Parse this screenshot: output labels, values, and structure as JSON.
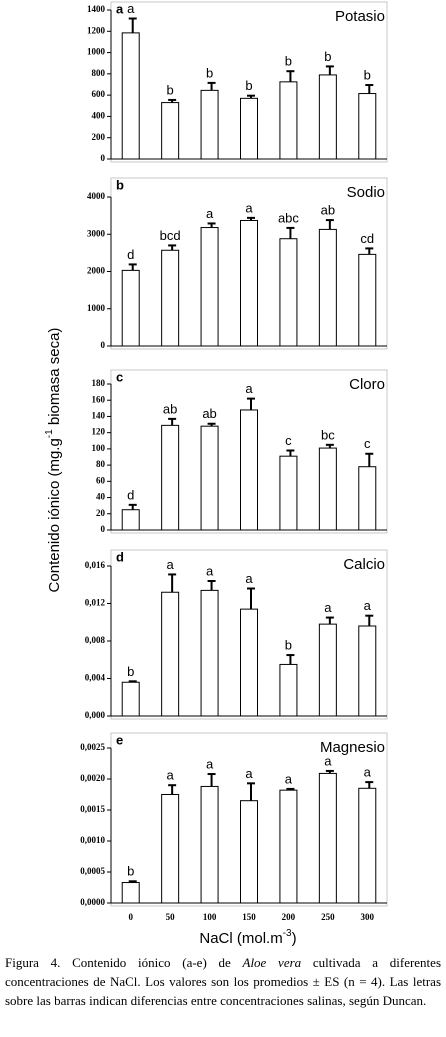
{
  "chart_data": [
    {
      "type": "bar",
      "panel": "a",
      "title": "Potasio",
      "values": [
        1185,
        530,
        645,
        570,
        725,
        790,
        615
      ],
      "errors": [
        135,
        25,
        70,
        25,
        100,
        80,
        80
      ],
      "annotations": [
        "a",
        "b",
        "b",
        "b",
        "b",
        "b",
        "b"
      ],
      "ylim": [
        0,
        1400
      ],
      "yticks": [
        0,
        200,
        400,
        600,
        800,
        1000,
        1200,
        1400
      ],
      "color": "#ffffff"
    },
    {
      "type": "bar",
      "panel": "b",
      "title": "Sodio",
      "values": [
        2030,
        2570,
        3180,
        3370,
        2880,
        3130,
        2460
      ],
      "errors": [
        160,
        130,
        110,
        70,
        290,
        250,
        160
      ],
      "annotations": [
        "d",
        "bcd",
        "a",
        "a",
        "abc",
        "ab",
        "cd"
      ],
      "ylim": [
        0,
        4000
      ],
      "yticks": [
        0,
        1000,
        2000,
        3000,
        4000
      ],
      "color": "#ffffff"
    },
    {
      "type": "bar",
      "panel": "c",
      "title": "Cloro",
      "values": [
        25,
        129,
        128,
        148,
        91,
        101,
        78
      ],
      "errors": [
        6,
        8,
        3,
        14,
        7,
        4,
        16
      ],
      "annotations": [
        "d",
        "ab",
        "ab",
        "a",
        "c",
        "bc",
        "c"
      ],
      "ylim": [
        0,
        180
      ],
      "yticks": [
        0,
        20,
        40,
        60,
        80,
        100,
        120,
        140,
        160,
        180
      ],
      "color": "#ffffff"
    },
    {
      "type": "bar",
      "panel": "d",
      "title": "Calcio",
      "values": [
        0.0036,
        0.0132,
        0.0134,
        0.0114,
        0.0055,
        0.0098,
        0.0096
      ],
      "errors": [
        0.0001,
        0.0019,
        0.001,
        0.0022,
        0.001,
        0.0007,
        0.0011
      ],
      "annotations": [
        "b",
        "a",
        "a",
        "a",
        "b",
        "a",
        "a"
      ],
      "ylim": [
        0,
        0.016
      ],
      "yticks": [
        {
          "value": 0,
          "label": "0,000"
        },
        {
          "value": 0.004,
          "label": "0,004"
        },
        {
          "value": 0.008,
          "label": "0,008"
        },
        {
          "value": 0.012,
          "label": "0,012"
        },
        {
          "value": 0.016,
          "label": "0,016"
        }
      ],
      "color": "#ffffff"
    },
    {
      "type": "bar",
      "panel": "e",
      "title": "Magnesio",
      "categories": [
        "0",
        "50",
        "100",
        "150",
        "200",
        "250",
        "300"
      ],
      "values": [
        0.00033,
        0.00175,
        0.00188,
        0.00165,
        0.00182,
        0.00209,
        0.00185
      ],
      "errors": [
        2e-05,
        0.00015,
        0.0002,
        0.00028,
        2e-05,
        4e-05,
        0.0001
      ],
      "annotations": [
        "b",
        "a",
        "a",
        "a",
        "a",
        "a",
        "a"
      ],
      "ylim": [
        0,
        0.0025
      ],
      "yticks": [
        {
          "value": 0,
          "label": "0,0000"
        },
        {
          "value": 0.0005,
          "label": "0,0005"
        },
        {
          "value": 0.001,
          "label": "0,0010"
        },
        {
          "value": 0.0015,
          "label": "0,0015"
        },
        {
          "value": 0.002,
          "label": "0,0020"
        },
        {
          "value": 0.0025,
          "label": "0,0025"
        }
      ],
      "color": "#ffffff"
    }
  ],
  "y_label": {
    "before": "Contenido iónico (mg.g",
    "sup": "-1",
    "after": " biomasa seca)"
  },
  "x_label": {
    "before": "NaCl (mol.m",
    "sup": "-3",
    "after": ")"
  },
  "caption": {
    "before": "Figura 4. Contenido iónico (a-e) de ",
    "italic": "Aloe vera",
    "after": " cultivada a diferentes concentraciones de NaCl. Los valores son los promedios ± ES (n = 4). Las letras sobre las barras indican diferencias entre concentraciones salinas, según Duncan."
  }
}
